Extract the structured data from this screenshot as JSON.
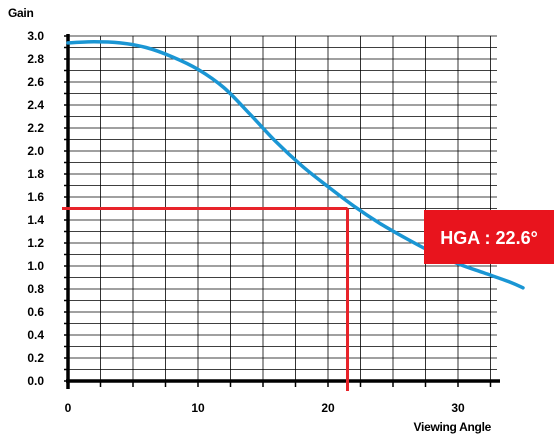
{
  "chart_data": {
    "type": "line",
    "ylabel": "Gain",
    "xlabel": "Viewing Angle",
    "xlim": [
      0,
      35
    ],
    "ylim": [
      0.0,
      3.0
    ],
    "x_ticks": [
      0,
      10,
      20,
      30
    ],
    "y_ticks": [
      "0.0",
      "0.2",
      "0.4",
      "0.6",
      "0.8",
      "1.0",
      "1.2",
      "1.4",
      "1.6",
      "1.8",
      "2.0",
      "2.2",
      "2.4",
      "2.6",
      "2.8",
      "3.0"
    ],
    "grid": true,
    "series": [
      {
        "color": "#1a96d4",
        "x": [
          0,
          2,
          4,
          6,
          8,
          10,
          12,
          14,
          16,
          18,
          20,
          22,
          24,
          26,
          28,
          30,
          32,
          34,
          35
        ],
        "y": [
          2.94,
          2.95,
          2.94,
          2.9,
          2.82,
          2.71,
          2.55,
          2.32,
          2.08,
          1.87,
          1.69,
          1.52,
          1.37,
          1.24,
          1.12,
          1.02,
          0.94,
          0.86,
          0.81
        ]
      }
    ],
    "reference": {
      "x": 21.5,
      "y": 1.5,
      "color": "#e8232a"
    },
    "annotation": {
      "text": "HGA : 22.6°",
      "color": "#e8141d"
    }
  }
}
